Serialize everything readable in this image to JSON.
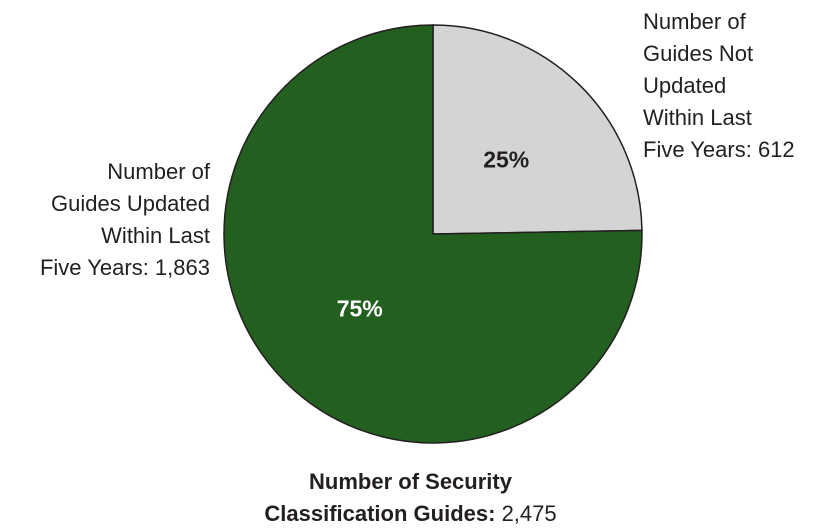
{
  "chart_data": {
    "type": "pie",
    "slices": [
      {
        "label_lines": [
          "Number of",
          "Guides Not",
          "Updated",
          "Within Last",
          "Five Years: 612"
        ],
        "value": 612,
        "percent_label": "25%",
        "color": "#d4d4d4",
        "text_color": "#231f20"
      },
      {
        "label_lines": [
          "Number of",
          "Guides Updated",
          "Within Last",
          "Five Years: 1,863"
        ],
        "value": 1863,
        "percent_label": "75%",
        "color": "#236020",
        "text_color": "#ffffff"
      }
    ],
    "total": {
      "bold_line1": "Number of Security",
      "bold_line2": "Classification Guides:",
      "value_text": "2,475"
    }
  }
}
